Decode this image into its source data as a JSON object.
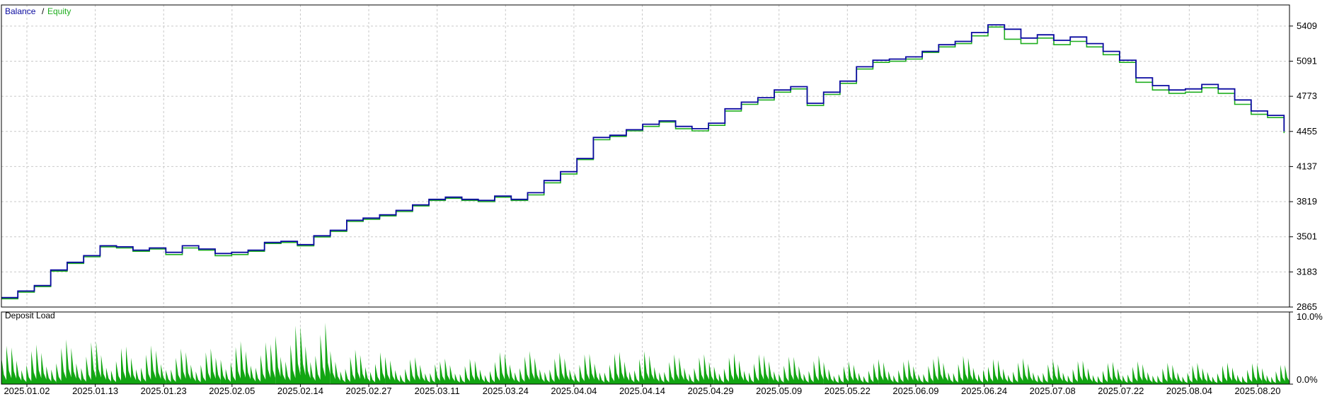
{
  "chart_data": [
    {
      "type": "line",
      "title": "",
      "legend": {
        "placement": "top-left",
        "items": [
          {
            "name": "Balance",
            "color": "#0a0aa0"
          },
          {
            "name": "Equity",
            "color": "#1fae1f"
          }
        ],
        "separator": "/"
      },
      "y_ticks": [
        "5409",
        "5091",
        "4773",
        "4455",
        "4137",
        "3819",
        "3501",
        "3183",
        "2865"
      ],
      "ylim": [
        2865,
        5600
      ],
      "x_range_days": [
        0,
        235
      ],
      "series": [
        {
          "name": "Balance",
          "color": "#0a0aa0",
          "points": [
            [
              0,
              2950
            ],
            [
              3,
              3010
            ],
            [
              6,
              3060
            ],
            [
              9,
              3200
            ],
            [
              12,
              3270
            ],
            [
              15,
              3330
            ],
            [
              18,
              3420
            ],
            [
              21,
              3410
            ],
            [
              24,
              3380
            ],
            [
              27,
              3400
            ],
            [
              30,
              3360
            ],
            [
              33,
              3420
            ],
            [
              36,
              3390
            ],
            [
              39,
              3350
            ],
            [
              42,
              3360
            ],
            [
              45,
              3380
            ],
            [
              48,
              3450
            ],
            [
              51,
              3460
            ],
            [
              54,
              3430
            ],
            [
              57,
              3510
            ],
            [
              60,
              3560
            ],
            [
              63,
              3650
            ],
            [
              66,
              3670
            ],
            [
              69,
              3700
            ],
            [
              72,
              3740
            ],
            [
              75,
              3790
            ],
            [
              78,
              3840
            ],
            [
              81,
              3860
            ],
            [
              84,
              3840
            ],
            [
              87,
              3830
            ],
            [
              90,
              3870
            ],
            [
              93,
              3840
            ],
            [
              96,
              3900
            ],
            [
              99,
              4010
            ],
            [
              102,
              4090
            ],
            [
              105,
              4210
            ],
            [
              108,
              4400
            ],
            [
              111,
              4420
            ],
            [
              114,
              4470
            ],
            [
              117,
              4520
            ],
            [
              120,
              4550
            ],
            [
              123,
              4500
            ],
            [
              126,
              4480
            ],
            [
              129,
              4530
            ],
            [
              132,
              4660
            ],
            [
              135,
              4720
            ],
            [
              138,
              4760
            ],
            [
              141,
              4830
            ],
            [
              144,
              4860
            ],
            [
              147,
              4710
            ],
            [
              150,
              4810
            ],
            [
              153,
              4910
            ],
            [
              156,
              5040
            ],
            [
              159,
              5100
            ],
            [
              162,
              5110
            ],
            [
              165,
              5130
            ],
            [
              168,
              5180
            ],
            [
              171,
              5240
            ],
            [
              174,
              5270
            ],
            [
              177,
              5350
            ],
            [
              180,
              5420
            ],
            [
              183,
              5380
            ],
            [
              186,
              5300
            ],
            [
              189,
              5330
            ],
            [
              192,
              5280
            ],
            [
              195,
              5310
            ],
            [
              198,
              5250
            ],
            [
              201,
              5180
            ],
            [
              204,
              5100
            ],
            [
              207,
              4940
            ],
            [
              210,
              4870
            ],
            [
              213,
              4830
            ],
            [
              216,
              4840
            ],
            [
              219,
              4880
            ],
            [
              222,
              4840
            ],
            [
              225,
              4740
            ],
            [
              228,
              4640
            ],
            [
              231,
              4600
            ],
            [
              234,
              4455
            ]
          ]
        },
        {
          "name": "Equity",
          "color": "#1fae1f",
          "points": [
            [
              0,
              2940
            ],
            [
              3,
              3000
            ],
            [
              6,
              3050
            ],
            [
              9,
              3190
            ],
            [
              12,
              3260
            ],
            [
              15,
              3320
            ],
            [
              18,
              3410
            ],
            [
              21,
              3400
            ],
            [
              24,
              3370
            ],
            [
              27,
              3390
            ],
            [
              30,
              3340
            ],
            [
              33,
              3400
            ],
            [
              36,
              3380
            ],
            [
              39,
              3330
            ],
            [
              42,
              3340
            ],
            [
              45,
              3370
            ],
            [
              48,
              3440
            ],
            [
              51,
              3450
            ],
            [
              54,
              3420
            ],
            [
              57,
              3500
            ],
            [
              60,
              3550
            ],
            [
              63,
              3640
            ],
            [
              66,
              3660
            ],
            [
              69,
              3690
            ],
            [
              72,
              3730
            ],
            [
              75,
              3780
            ],
            [
              78,
              3830
            ],
            [
              81,
              3850
            ],
            [
              84,
              3830
            ],
            [
              87,
              3820
            ],
            [
              90,
              3860
            ],
            [
              93,
              3830
            ],
            [
              96,
              3880
            ],
            [
              99,
              3990
            ],
            [
              102,
              4070
            ],
            [
              105,
              4200
            ],
            [
              108,
              4380
            ],
            [
              111,
              4410
            ],
            [
              114,
              4460
            ],
            [
              117,
              4500
            ],
            [
              120,
              4540
            ],
            [
              123,
              4480
            ],
            [
              126,
              4460
            ],
            [
              129,
              4510
            ],
            [
              132,
              4640
            ],
            [
              135,
              4700
            ],
            [
              138,
              4740
            ],
            [
              141,
              4810
            ],
            [
              144,
              4840
            ],
            [
              147,
              4690
            ],
            [
              150,
              4790
            ],
            [
              153,
              4890
            ],
            [
              156,
              5020
            ],
            [
              159,
              5080
            ],
            [
              162,
              5090
            ],
            [
              165,
              5110
            ],
            [
              168,
              5170
            ],
            [
              171,
              5220
            ],
            [
              174,
              5250
            ],
            [
              177,
              5320
            ],
            [
              180,
              5400
            ],
            [
              183,
              5290
            ],
            [
              186,
              5250
            ],
            [
              189,
              5300
            ],
            [
              192,
              5240
            ],
            [
              195,
              5270
            ],
            [
              198,
              5220
            ],
            [
              201,
              5150
            ],
            [
              204,
              5080
            ],
            [
              207,
              4900
            ],
            [
              210,
              4830
            ],
            [
              213,
              4800
            ],
            [
              216,
              4810
            ],
            [
              219,
              4850
            ],
            [
              222,
              4800
            ],
            [
              225,
              4700
            ],
            [
              228,
              4610
            ],
            [
              231,
              4580
            ],
            [
              234,
              4440
            ]
          ]
        }
      ]
    },
    {
      "type": "area",
      "title": "Deposit Load",
      "color": "#12a612",
      "y_ticks": [
        "10.0%",
        "0.0%"
      ],
      "ylim": [
        0,
        10
      ],
      "x_range_days": [
        0,
        235
      ],
      "segments": [
        {
          "start": 0,
          "end": 10,
          "peak": 5.5
        },
        {
          "start": 10,
          "end": 20,
          "peak": 6.2
        },
        {
          "start": 20,
          "end": 30,
          "peak": 5.4
        },
        {
          "start": 30,
          "end": 40,
          "peak": 5.0
        },
        {
          "start": 40,
          "end": 50,
          "peak": 6.0
        },
        {
          "start": 50,
          "end": 60,
          "peak": 8.5
        },
        {
          "start": 60,
          "end": 70,
          "peak": 4.8
        },
        {
          "start": 70,
          "end": 80,
          "peak": 3.8
        },
        {
          "start": 80,
          "end": 90,
          "peak": 3.6
        },
        {
          "start": 90,
          "end": 100,
          "peak": 4.6
        },
        {
          "start": 100,
          "end": 110,
          "peak": 4.4
        },
        {
          "start": 110,
          "end": 120,
          "peak": 4.6
        },
        {
          "start": 120,
          "end": 130,
          "peak": 4.2
        },
        {
          "start": 130,
          "end": 140,
          "peak": 4.3
        },
        {
          "start": 140,
          "end": 150,
          "peak": 4.0
        },
        {
          "start": 150,
          "end": 160,
          "peak": 3.2
        },
        {
          "start": 160,
          "end": 170,
          "peak": 3.5
        },
        {
          "start": 170,
          "end": 180,
          "peak": 4.0
        },
        {
          "start": 180,
          "end": 190,
          "peak": 3.6
        },
        {
          "start": 190,
          "end": 200,
          "peak": 3.4
        },
        {
          "start": 200,
          "end": 210,
          "peak": 3.2
        },
        {
          "start": 210,
          "end": 220,
          "peak": 3.0
        },
        {
          "start": 220,
          "end": 230,
          "peak": 3.0
        },
        {
          "start": 230,
          "end": 235,
          "peak": 2.8
        }
      ]
    }
  ],
  "x_axis": {
    "tick_labels": [
      "2025.01.02",
      "2025.01.13",
      "2025.01.23",
      "2025.02.05",
      "2025.02.14",
      "2025.02.27",
      "2025.03.11",
      "2025.03.24",
      "2025.04.04",
      "2025.04.14",
      "2025.04.29",
      "2025.05.09",
      "2025.05.22",
      "2025.06.09",
      "2025.06.24",
      "2025.07.08",
      "2025.07.22",
      "2025.08.04",
      "2025.08.20"
    ]
  }
}
